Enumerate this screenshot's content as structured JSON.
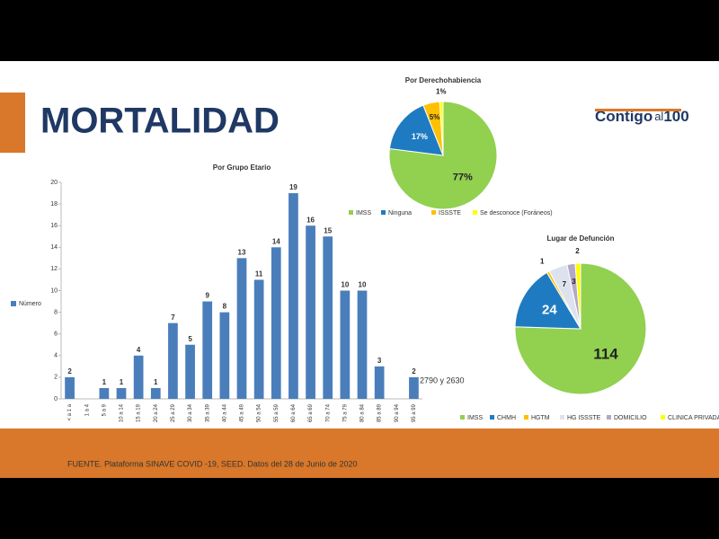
{
  "slide": {
    "title": "MORTALIDAD",
    "logo": [
      "Contigo",
      "al",
      "100"
    ],
    "source": "FUENTE. Plataforma SINAVE COVID -19, SEED. Datos del 28 de Junio de 2020"
  },
  "chart_data": [
    {
      "type": "bar",
      "title": "Por Grupo Etario",
      "categories": [
        "< a 1 a",
        "1 a 4",
        "5 a 9",
        "10 a 14",
        "15 a 19",
        "20 a 24",
        "25 a 29",
        "30 a 34",
        "35 a 39",
        "40 a 44",
        "45 a 49",
        "50 a 54",
        "55 a 59",
        "60 a 64",
        "65 a 69",
        "70 a 74",
        "75 a 79",
        "80 a 84",
        "85 a 89",
        "90 a 94",
        "95 a 99"
      ],
      "series": [
        {
          "name": "Número",
          "color": "#4a7ebb",
          "values": [
            2,
            0,
            1,
            1,
            4,
            1,
            7,
            5,
            9,
            8,
            13,
            11,
            14,
            19,
            16,
            15,
            10,
            10,
            3,
            0,
            2
          ]
        }
      ],
      "ylim": [
        0,
        20
      ],
      "yticks": [
        0,
        2,
        4,
        6,
        8,
        10,
        12,
        14,
        16,
        18,
        20
      ],
      "annotation": "2790 y 2630",
      "legend": "left"
    },
    {
      "type": "pie",
      "title": "Por Derechohabiencia",
      "categories": [
        "IMSS",
        "Ninguna",
        "ISSSTE",
        "Se desconoce (Foráneos)"
      ],
      "values": [
        77,
        17,
        5,
        1
      ],
      "value_labels": [
        "77%",
        "17%",
        "5%",
        "1%"
      ],
      "colors": [
        "#92d050",
        "#1f7bc1",
        "#ffc000",
        "#ffff00"
      ],
      "legend": "bottom"
    },
    {
      "type": "pie",
      "title": "Lugar de Defunción",
      "categories": [
        "IMSS",
        "CHMH",
        "HGTM",
        "HG ISSSTE",
        "DOMICILIO",
        "CLINICA PRIVADA"
      ],
      "values": [
        114,
        24,
        1,
        7,
        3,
        2
      ],
      "colors": [
        "#92d050",
        "#1f7bc1",
        "#ffc000",
        "#dde3ee",
        "#b4a7c7",
        "#ffff00"
      ],
      "legend": "bottom"
    }
  ]
}
